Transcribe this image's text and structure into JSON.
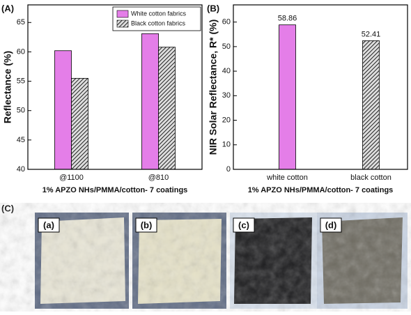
{
  "chart_data": [
    {
      "type": "grouped-bar",
      "panel_label": "(A)",
      "y_label": "Reflectance (%)",
      "x_label": "1% APZO NHs/PMMA/cotton- 7 coatings",
      "categories": [
        "@1100",
        "@810"
      ],
      "series": [
        {
          "name": "White cotton fabrics",
          "color": "#e47ee8",
          "hatch": false,
          "values": [
            60.2,
            63.1
          ]
        },
        {
          "name": "Black cotton fabrics",
          "color": "#444444",
          "hatch": true,
          "values": [
            55.5,
            60.8
          ]
        }
      ],
      "ylim": [
        40,
        68
      ],
      "yticks": [
        40,
        45,
        50,
        55,
        60,
        65
      ],
      "legend": "top-right"
    },
    {
      "type": "bar",
      "panel_label": "(B)",
      "y_label": "NIR Solar Reflectance, R* (%)",
      "x_label": "1% APZO NHs/PMMA/cotton- 7 coatings",
      "categories": [
        "white cotton",
        "black cotton"
      ],
      "values": [
        58.86,
        52.41
      ],
      "colors": [
        "#e47ee8",
        "#444444"
      ],
      "hatch": [
        false,
        true
      ],
      "ylim": [
        0,
        67
      ],
      "yticks": [
        0,
        10,
        20,
        30,
        40,
        50,
        60
      ]
    }
  ],
  "photos": {
    "panel_label": "(C)",
    "labels": [
      "(a)",
      "(b)",
      "(c)",
      "(d)"
    ]
  }
}
